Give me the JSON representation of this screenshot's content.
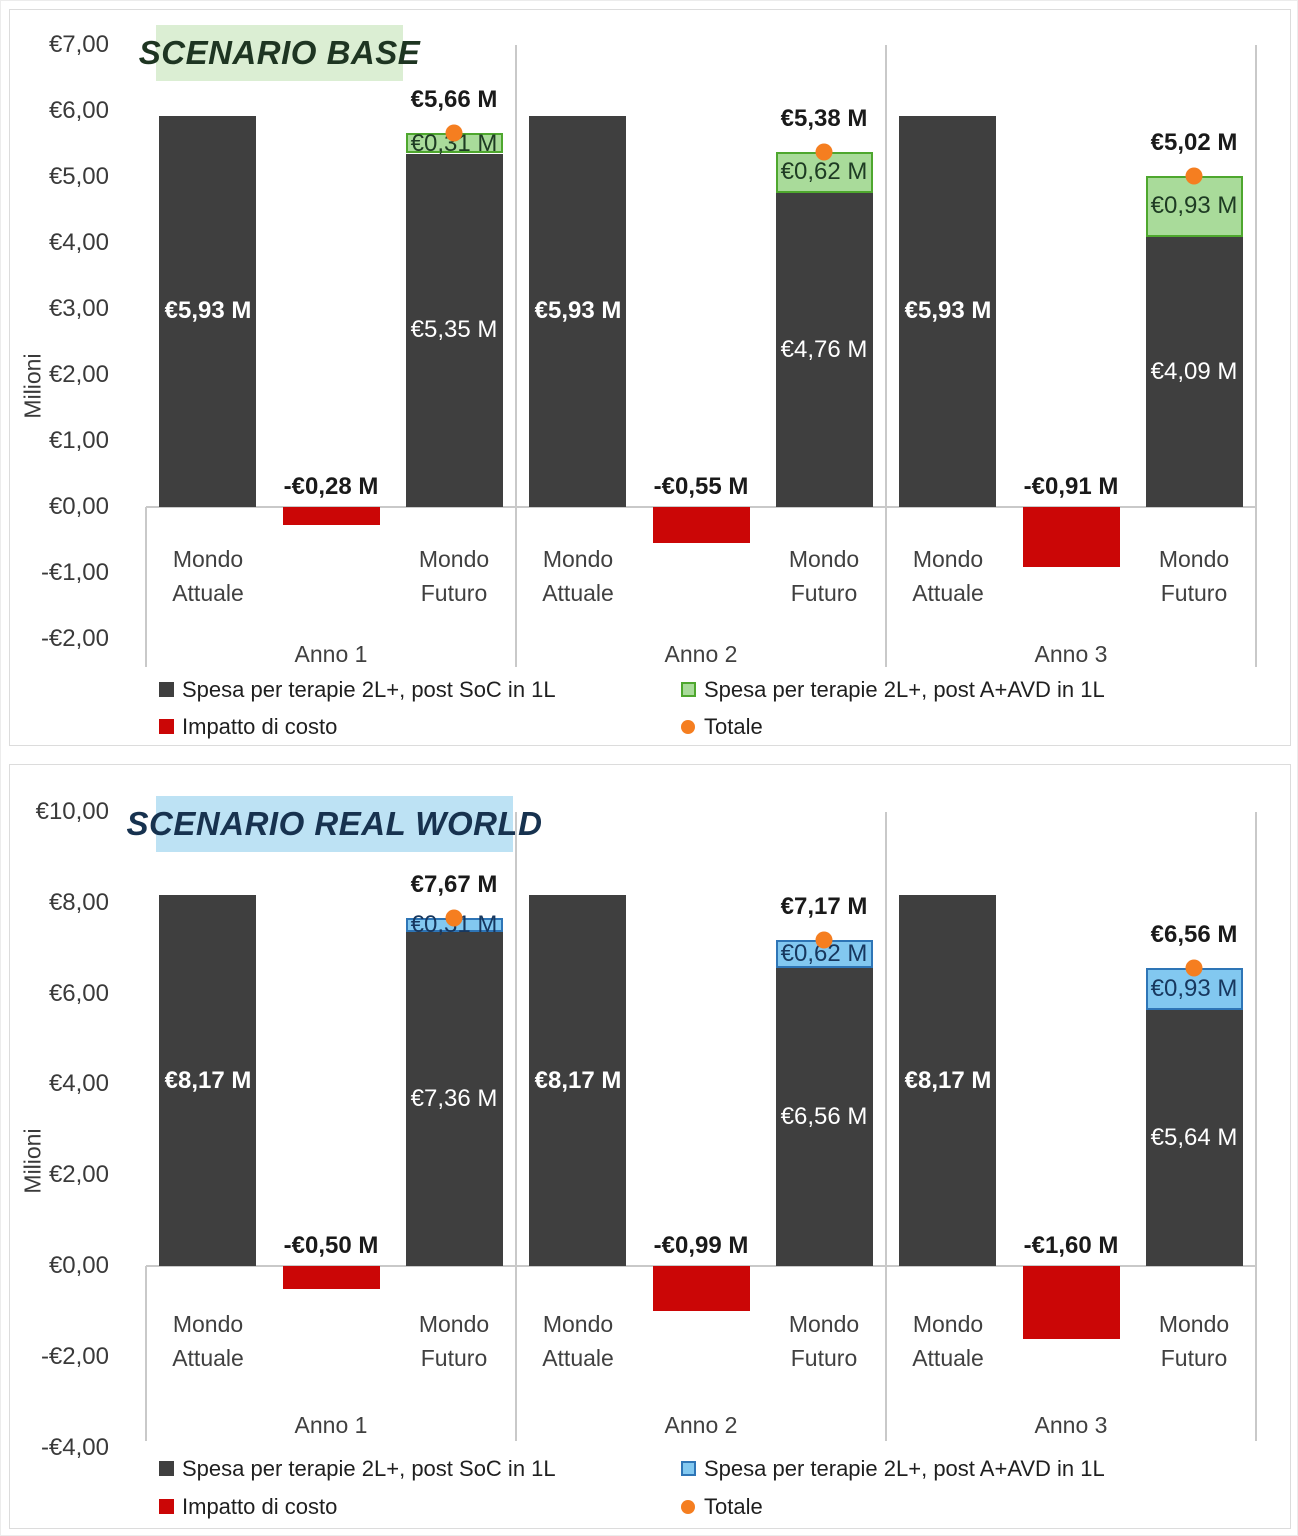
{
  "chart_data": [
    {
      "type": "bar",
      "title": "SCENARIO BASE",
      "title_bg": "#dbeed3",
      "title_color": "#1e3522",
      "ylabel": "Milioni",
      "ylim": [
        -2,
        7
      ],
      "grid": false,
      "legend_position": "bottom",
      "categories": [
        "Anno 1",
        "Anno 2",
        "Anno 3"
      ],
      "sub_categories": [
        [
          "Mondo",
          "Attuale"
        ],
        [
          "Mondo",
          "Futuro"
        ]
      ],
      "yticks": [
        {
          "v": 7,
          "label": "€7,00"
        },
        {
          "v": 6,
          "label": "€6,00"
        },
        {
          "v": 5,
          "label": "€5,00"
        },
        {
          "v": 4,
          "label": "€4,00"
        },
        {
          "v": 3,
          "label": "€3,00"
        },
        {
          "v": 2,
          "label": "€2,00"
        },
        {
          "v": 1,
          "label": "€1,00"
        },
        {
          "v": 0,
          "label": "€0,00"
        },
        {
          "v": -1,
          "label": "-€1,00"
        },
        {
          "v": -2,
          "label": "-€2,00"
        }
      ],
      "series": {
        "base": {
          "name": "Spesa per terapie 2L+, post SoC in 1L",
          "color": "#3f3f3f",
          "attuale_values": [
            5.93,
            5.93,
            5.93
          ],
          "attuale_labels": [
            "€5,93 M",
            "€5,93 M",
            "€5,93 M"
          ],
          "futuro_values": [
            5.35,
            4.76,
            4.09
          ],
          "futuro_labels": [
            "€5,35 M",
            "€4,76 M",
            "€4,09 M"
          ]
        },
        "segment": {
          "name": "Spesa per terapie 2L+, post A+AVD in 1L",
          "fill": "#a9db9a",
          "border": "#4ea72e",
          "text_color": "#1e3b23",
          "values": [
            0.31,
            0.62,
            0.93
          ],
          "labels": [
            "€0,31 M",
            "€0,62 M",
            "€0,93 M"
          ]
        },
        "impact": {
          "name": "Impatto di costo",
          "color": "#cb0606",
          "values": [
            -0.28,
            -0.55,
            -0.91
          ],
          "labels": [
            "-€0,28 M",
            "-€0,55 M",
            "-€0,91 M"
          ]
        },
        "total": {
          "name": "Totale",
          "color": "#f57e20",
          "values": [
            5.66,
            5.38,
            5.02
          ],
          "labels": [
            "€5,66 M",
            "€5,38 M",
            "€5,02 M"
          ]
        }
      }
    },
    {
      "type": "bar",
      "title": "SCENARIO REAL WORLD",
      "title_bg": "#bde2f4",
      "title_color": "#17324f",
      "ylabel": "Milioni",
      "ylim": [
        -4,
        10
      ],
      "grid": false,
      "legend_position": "bottom",
      "categories": [
        "Anno 1",
        "Anno 2",
        "Anno 3"
      ],
      "sub_categories": [
        [
          "Mondo",
          "Attuale"
        ],
        [
          "Mondo",
          "Futuro"
        ]
      ],
      "yticks": [
        {
          "v": 10,
          "label": "€10,00"
        },
        {
          "v": 8,
          "label": "€8,00"
        },
        {
          "v": 6,
          "label": "€6,00"
        },
        {
          "v": 4,
          "label": "€4,00"
        },
        {
          "v": 2,
          "label": "€2,00"
        },
        {
          "v": 0,
          "label": "€0,00"
        },
        {
          "v": -2,
          "label": "-€2,00"
        },
        {
          "v": -4,
          "label": "-€4,00"
        }
      ],
      "series": {
        "base": {
          "name": "Spesa per terapie 2L+, post SoC in 1L",
          "color": "#3f3f3f",
          "attuale_values": [
            8.17,
            8.17,
            8.17
          ],
          "attuale_labels": [
            "€8,17 M",
            "€8,17 M",
            "€8,17 M"
          ],
          "futuro_values": [
            7.36,
            6.56,
            5.64
          ],
          "futuro_labels": [
            "€7,36 M",
            "€6,56 M",
            "€5,64 M"
          ]
        },
        "segment": {
          "name": "Spesa per terapie 2L+, post A+AVD in 1L",
          "fill": "#82c8f0",
          "border": "#2e75b6",
          "text_color": "#17375e",
          "values": [
            0.31,
            0.62,
            0.93
          ],
          "labels": [
            "€0,31 M",
            "€0,62 M",
            "€0,93 M"
          ]
        },
        "impact": {
          "name": "Impatto di costo",
          "color": "#cb0606",
          "values": [
            -0.5,
            -0.99,
            -1.6
          ],
          "labels": [
            "-€0,50 M",
            "-€0,99 M",
            "-€1,60 M"
          ]
        },
        "total": {
          "name": "Totale",
          "color": "#f57e20",
          "values": [
            7.67,
            7.17,
            6.56
          ],
          "labels": [
            "€7,67 M",
            "€7,17 M",
            "€6,56 M"
          ]
        }
      }
    }
  ]
}
